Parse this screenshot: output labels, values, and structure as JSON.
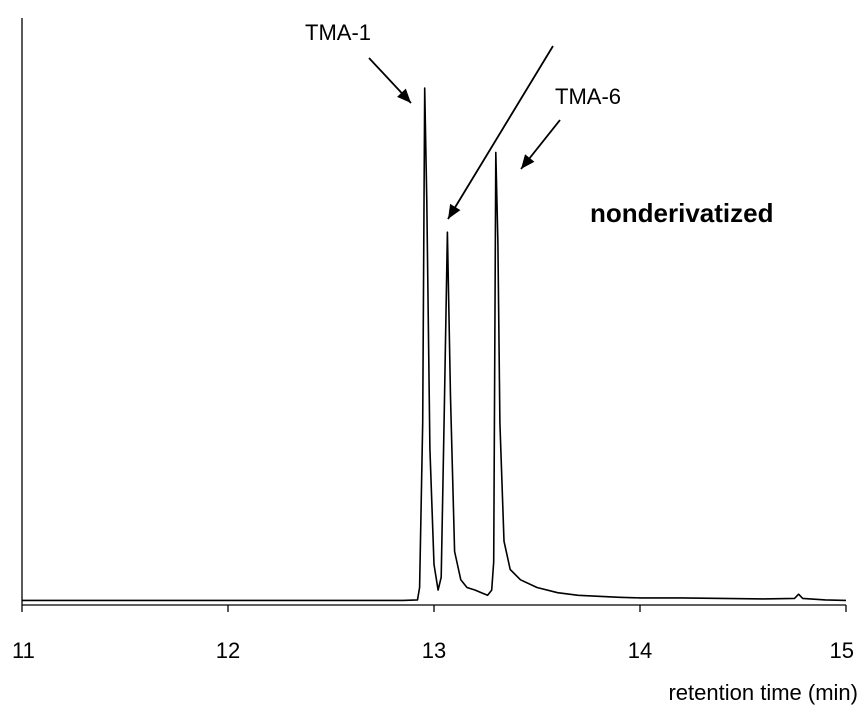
{
  "chart_data": {
    "type": "line",
    "title": "",
    "xlabel": "retention time (min)",
    "ylabel": "",
    "xlim": [
      11,
      15
    ],
    "ylim": [
      0,
      100
    ],
    "xticks": [
      "11",
      "12",
      "13",
      "14",
      "15"
    ],
    "grid": false,
    "legend": "none",
    "annotation": "nonderivatized",
    "peak_labels": [
      {
        "text": "TMA-1",
        "x": 12.96,
        "y": 100
      },
      {
        "text": "TMA-6",
        "x": 13.3,
        "y": 87.5
      }
    ],
    "unlabeled_arrow_target": {
      "x": 13.05,
      "y": 75
    },
    "series": [
      {
        "x": [
          11.0,
          11.5,
          12.0,
          12.5,
          12.85,
          12.92,
          12.93,
          12.945,
          12.955,
          12.965,
          12.98,
          13.0,
          13.02,
          13.035,
          13.05,
          13.065,
          13.08,
          13.1,
          13.13,
          13.16,
          13.2,
          13.23,
          13.26,
          13.28,
          13.29,
          13.3,
          13.31,
          13.32,
          13.34,
          13.37,
          13.42,
          13.5,
          13.6,
          13.7,
          13.8,
          13.9,
          14.0,
          14.2,
          14.4,
          14.6,
          14.75,
          14.77,
          14.79,
          14.9,
          15.0
        ],
        "y": [
          0.5,
          0.5,
          0.5,
          0.5,
          0.5,
          0.6,
          3.0,
          35.0,
          100.0,
          78.0,
          30.0,
          7.5,
          2.5,
          5.0,
          37.5,
          72.0,
          40.0,
          10.0,
          4.5,
          3.0,
          2.5,
          2.0,
          1.5,
          2.5,
          8.0,
          87.5,
          70.0,
          35.0,
          12.0,
          6.5,
          4.5,
          3.0,
          2.0,
          1.5,
          1.3,
          1.1,
          1.0,
          1.0,
          0.9,
          0.8,
          0.9,
          1.7,
          0.9,
          0.6,
          0.5
        ]
      }
    ]
  }
}
